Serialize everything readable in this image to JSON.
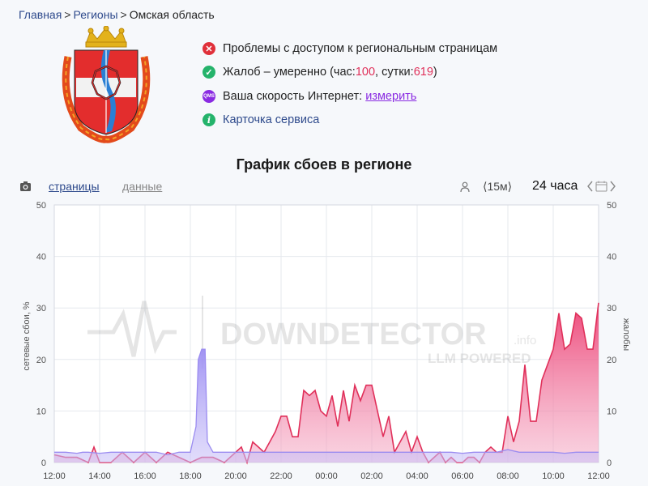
{
  "breadcrumb": {
    "home": "Главная",
    "regions": "Регионы",
    "current": "Омская область"
  },
  "status": {
    "access": "Проблемы с доступом к региональным страницам",
    "complaints_prefix": "Жалоб – умеренно (час: ",
    "complaints_hour": "100",
    "complaints_mid": ", сутки: ",
    "complaints_day": "619",
    "complaints_suffix": ")",
    "speed_label": "Ваша скорость Интернет: ",
    "speed_link": "измерить",
    "speed_icon_text": "QMS",
    "service_card": "Карточка сервиса",
    "info_icon_text": "i"
  },
  "chart_title": "График сбоев в регионе",
  "toolbar": {
    "tab_pages": "страницы",
    "tab_data": "данные",
    "interval": "⟨15м⟩",
    "period": "24 часа",
    "icons": [
      "camera-icon",
      "user-icon",
      "chevron-left-icon",
      "calendar-icon",
      "chevron-right-icon"
    ]
  },
  "watermark": {
    "brand": "DOWNDETECTOR",
    "suffix": ".info",
    "sub": "LLM POWERED"
  },
  "chart_data": {
    "type": "area",
    "xlabel": "",
    "ylabel_left": "сетевые сбои, %",
    "ylabel_right": "жалобы",
    "ylim": [
      0,
      50
    ],
    "yticks": [
      "0",
      "10",
      "20",
      "30",
      "40",
      "50"
    ],
    "xticks": [
      "12:00",
      "14:00",
      "16:00",
      "18:00",
      "20:00",
      "22:00",
      "00:00",
      "02:00",
      "04:00",
      "06:00",
      "08:00",
      "10:00",
      "12:00"
    ],
    "colors": {
      "failures": "#9b8cf0",
      "complaints": "#e0305a"
    },
    "series": [
      {
        "x": [
          0,
          0.5,
          1,
          1.25,
          1.5,
          2,
          2.5,
          3,
          3.5,
          4,
          4.5,
          5,
          5.5,
          6,
          6.25,
          6.35,
          6.5,
          6.65,
          6.75,
          7,
          7.5,
          8,
          8.5,
          9,
          9.5,
          10,
          10.5,
          11,
          11.5,
          12,
          12.5,
          13,
          13.5,
          14,
          14.5,
          15,
          15.5,
          16,
          16.5,
          17,
          17.5,
          18,
          18.5,
          19,
          19.5,
          20,
          20.5,
          21,
          21.5,
          22,
          22.5,
          23,
          23.5,
          24
        ],
        "values": [
          2,
          2,
          1.8,
          2,
          2,
          1.8,
          2,
          2,
          2,
          2,
          2,
          1.5,
          2,
          2,
          7,
          20,
          22,
          22,
          4,
          2,
          2,
          2,
          2,
          2,
          2,
          2,
          2,
          2,
          2,
          2,
          2,
          2,
          2,
          2,
          2,
          2,
          2,
          2,
          2,
          2,
          2,
          1.8,
          2,
          2,
          2,
          2.5,
          2,
          2,
          2,
          2,
          1.8,
          2,
          2,
          2
        ]
      },
      {
        "x": [
          0,
          0.5,
          1,
          1.5,
          1.75,
          2,
          2.5,
          3,
          3.5,
          4,
          4.5,
          5,
          5.5,
          6,
          6.5,
          7,
          7.5,
          8,
          8.25,
          8.5,
          8.75,
          9,
          9.25,
          9.5,
          9.75,
          10,
          10.25,
          10.5,
          10.75,
          11,
          11.25,
          11.5,
          11.75,
          12,
          12.25,
          12.5,
          12.75,
          13,
          13.25,
          13.5,
          13.75,
          14,
          14.25,
          14.5,
          14.75,
          15,
          15.25,
          15.5,
          15.75,
          16,
          16.25,
          16.5,
          16.75,
          17,
          17.25,
          17.5,
          17.75,
          18,
          18.25,
          18.5,
          18.75,
          19,
          19.25,
          19.5,
          19.75,
          20,
          20.25,
          20.5,
          20.75,
          21,
          21.25,
          21.5,
          21.75,
          22,
          22.25,
          22.5,
          22.75,
          23,
          23.25,
          23.5,
          23.75,
          24
        ],
        "values": [
          1.5,
          1,
          1,
          0,
          3,
          0,
          0,
          2,
          0,
          2,
          0,
          2,
          1,
          0,
          1,
          1,
          0,
          2,
          3,
          0,
          4,
          3,
          2,
          4,
          6,
          9,
          9,
          5,
          5,
          14,
          13,
          14,
          10,
          9,
          13,
          7,
          14,
          8,
          15,
          12,
          15,
          15,
          10,
          5,
          9,
          2,
          4,
          6,
          2,
          5,
          2,
          0,
          1,
          2,
          0,
          1,
          0,
          0,
          1,
          1,
          0,
          2,
          3,
          2,
          2,
          9,
          4,
          8,
          19,
          8,
          8,
          16,
          19,
          22,
          29,
          22,
          23,
          29,
          28,
          22,
          22,
          31
        ]
      }
    ]
  }
}
